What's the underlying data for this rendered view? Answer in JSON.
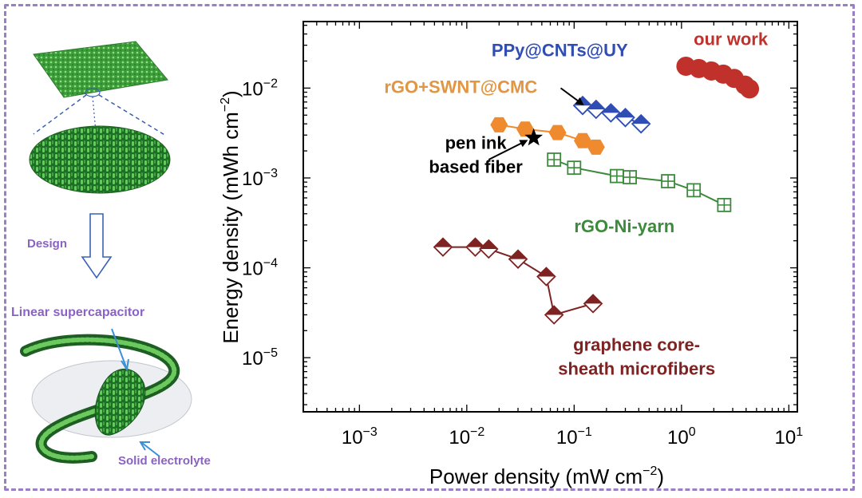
{
  "figure": {
    "schematic_labels": {
      "design": "Design",
      "linear_supercapacitor": "Linear supercapacitor",
      "solid_electrolyte": "Solid electrolyte"
    }
  },
  "chart_data": {
    "type": "scatter",
    "x_scale": "log",
    "y_scale": "log",
    "xlabel": "Power density (mW cm",
    "xlabel_sup": "−2",
    "xlabel_tail": ")",
    "ylabel": "Energy density (mWh cm",
    "ylabel_sup": "−2",
    "ylabel_tail": ")",
    "xlim": [
      0.0003,
      12
    ],
    "ylim": [
      2.5e-06,
      0.055
    ],
    "x_ticks": [
      {
        "value": 0.001,
        "base": "10",
        "exp": "−3"
      },
      {
        "value": 0.01,
        "base": "10",
        "exp": "−2"
      },
      {
        "value": 0.1,
        "base": "10",
        "exp": "−1"
      },
      {
        "value": 1,
        "base": "10",
        "exp": "0"
      },
      {
        "value": 10,
        "base": "10",
        "exp": "1"
      }
    ],
    "y_ticks": [
      {
        "value": 1e-05,
        "base": "10",
        "exp": "−5"
      },
      {
        "value": 0.0001,
        "base": "10",
        "exp": "−4"
      },
      {
        "value": 0.001,
        "base": "10",
        "exp": "−3"
      },
      {
        "value": 0.01,
        "base": "10",
        "exp": "−2"
      }
    ],
    "series": [
      {
        "name": "our work",
        "color": "#c0312b",
        "marker": "circle",
        "connected": false,
        "points": [
          [
            1.1,
            0.0175
          ],
          [
            1.45,
            0.0165
          ],
          [
            1.9,
            0.0155
          ],
          [
            2.45,
            0.0143
          ],
          [
            3.1,
            0.0128
          ],
          [
            3.9,
            0.0108
          ],
          [
            4.3,
            0.0098
          ]
        ]
      },
      {
        "name": "PPy@CNTs@UY",
        "color": "#2f4db2",
        "marker": "diamond-half",
        "connected": true,
        "points": [
          [
            0.12,
            0.0064
          ],
          [
            0.16,
            0.0058
          ],
          [
            0.22,
            0.0053
          ],
          [
            0.3,
            0.0047
          ],
          [
            0.42,
            0.004
          ]
        ]
      },
      {
        "name": "rGO+SWNT@CMC",
        "color": "#f08a2e",
        "marker": "hexagon",
        "connected": true,
        "points": [
          [
            0.02,
            0.0039
          ],
          [
            0.035,
            0.0035
          ],
          [
            0.07,
            0.0032
          ],
          [
            0.12,
            0.0026
          ],
          [
            0.16,
            0.0022
          ]
        ]
      },
      {
        "name": "rGO-Ni-yarn",
        "color": "#3c8a3c",
        "marker": "square-cross",
        "connected": true,
        "points": [
          [
            0.065,
            0.0016
          ],
          [
            0.1,
            0.0013
          ],
          [
            0.25,
            0.00105
          ],
          [
            0.33,
            0.00102
          ],
          [
            0.75,
            0.00092
          ],
          [
            1.3,
            0.00073
          ],
          [
            2.5,
            0.0005
          ]
        ]
      },
      {
        "name": "graphene core-sheath microfibers",
        "color": "#7e2222",
        "marker": "diamond-half",
        "connected": true,
        "points": [
          [
            0.006,
            0.00017
          ],
          [
            0.012,
            0.00017
          ],
          [
            0.016,
            0.000162
          ],
          [
            0.03,
            0.000125
          ],
          [
            0.055,
            8e-05
          ],
          [
            0.065,
            3e-05
          ],
          [
            0.15,
            4e-05
          ]
        ]
      },
      {
        "name": "pen ink based fiber",
        "color": "#000000",
        "marker": "star",
        "connected": false,
        "points": [
          [
            0.042,
            0.0028
          ]
        ]
      }
    ],
    "annotations": [
      {
        "id": "our-work",
        "lines": [
          "our work"
        ],
        "color": "#c0312b",
        "x": 1.3,
        "y": 0.03
      },
      {
        "id": "ppy",
        "lines": [
          "PPy@CNTs@UY"
        ],
        "color": "#2f4db2",
        "x": 0.017,
        "y": 0.0225
      },
      {
        "id": "rgo-swnt",
        "lines": [
          "rGO+SWNT@CMC"
        ],
        "color": "#e09642",
        "x": 0.0017,
        "y": 0.0088
      },
      {
        "id": "pen-ink",
        "lines": [
          "pen ink",
          "based fiber"
        ],
        "color": "#000000",
        "x": 0.0035,
        "y": 0.0021
      },
      {
        "id": "rgo-ni",
        "lines": [
          "rGO-Ni-yarn"
        ],
        "color": "#3c8a3c",
        "x": 0.1,
        "y": 0.00025
      },
      {
        "id": "graphene",
        "lines": [
          "graphene core-",
          "sheath microfibers"
        ],
        "color": "#7e2222",
        "x": 0.05,
        "y": 1.2e-05
      }
    ],
    "arrows": [
      {
        "id": "ppy-arrow",
        "from": [
          0.075,
          0.01
        ],
        "to": [
          0.12,
          0.0066
        ]
      },
      {
        "id": "pen-arrow",
        "from": [
          0.016,
          0.0016
        ],
        "to": [
          0.036,
          0.0026
        ]
      }
    ]
  }
}
